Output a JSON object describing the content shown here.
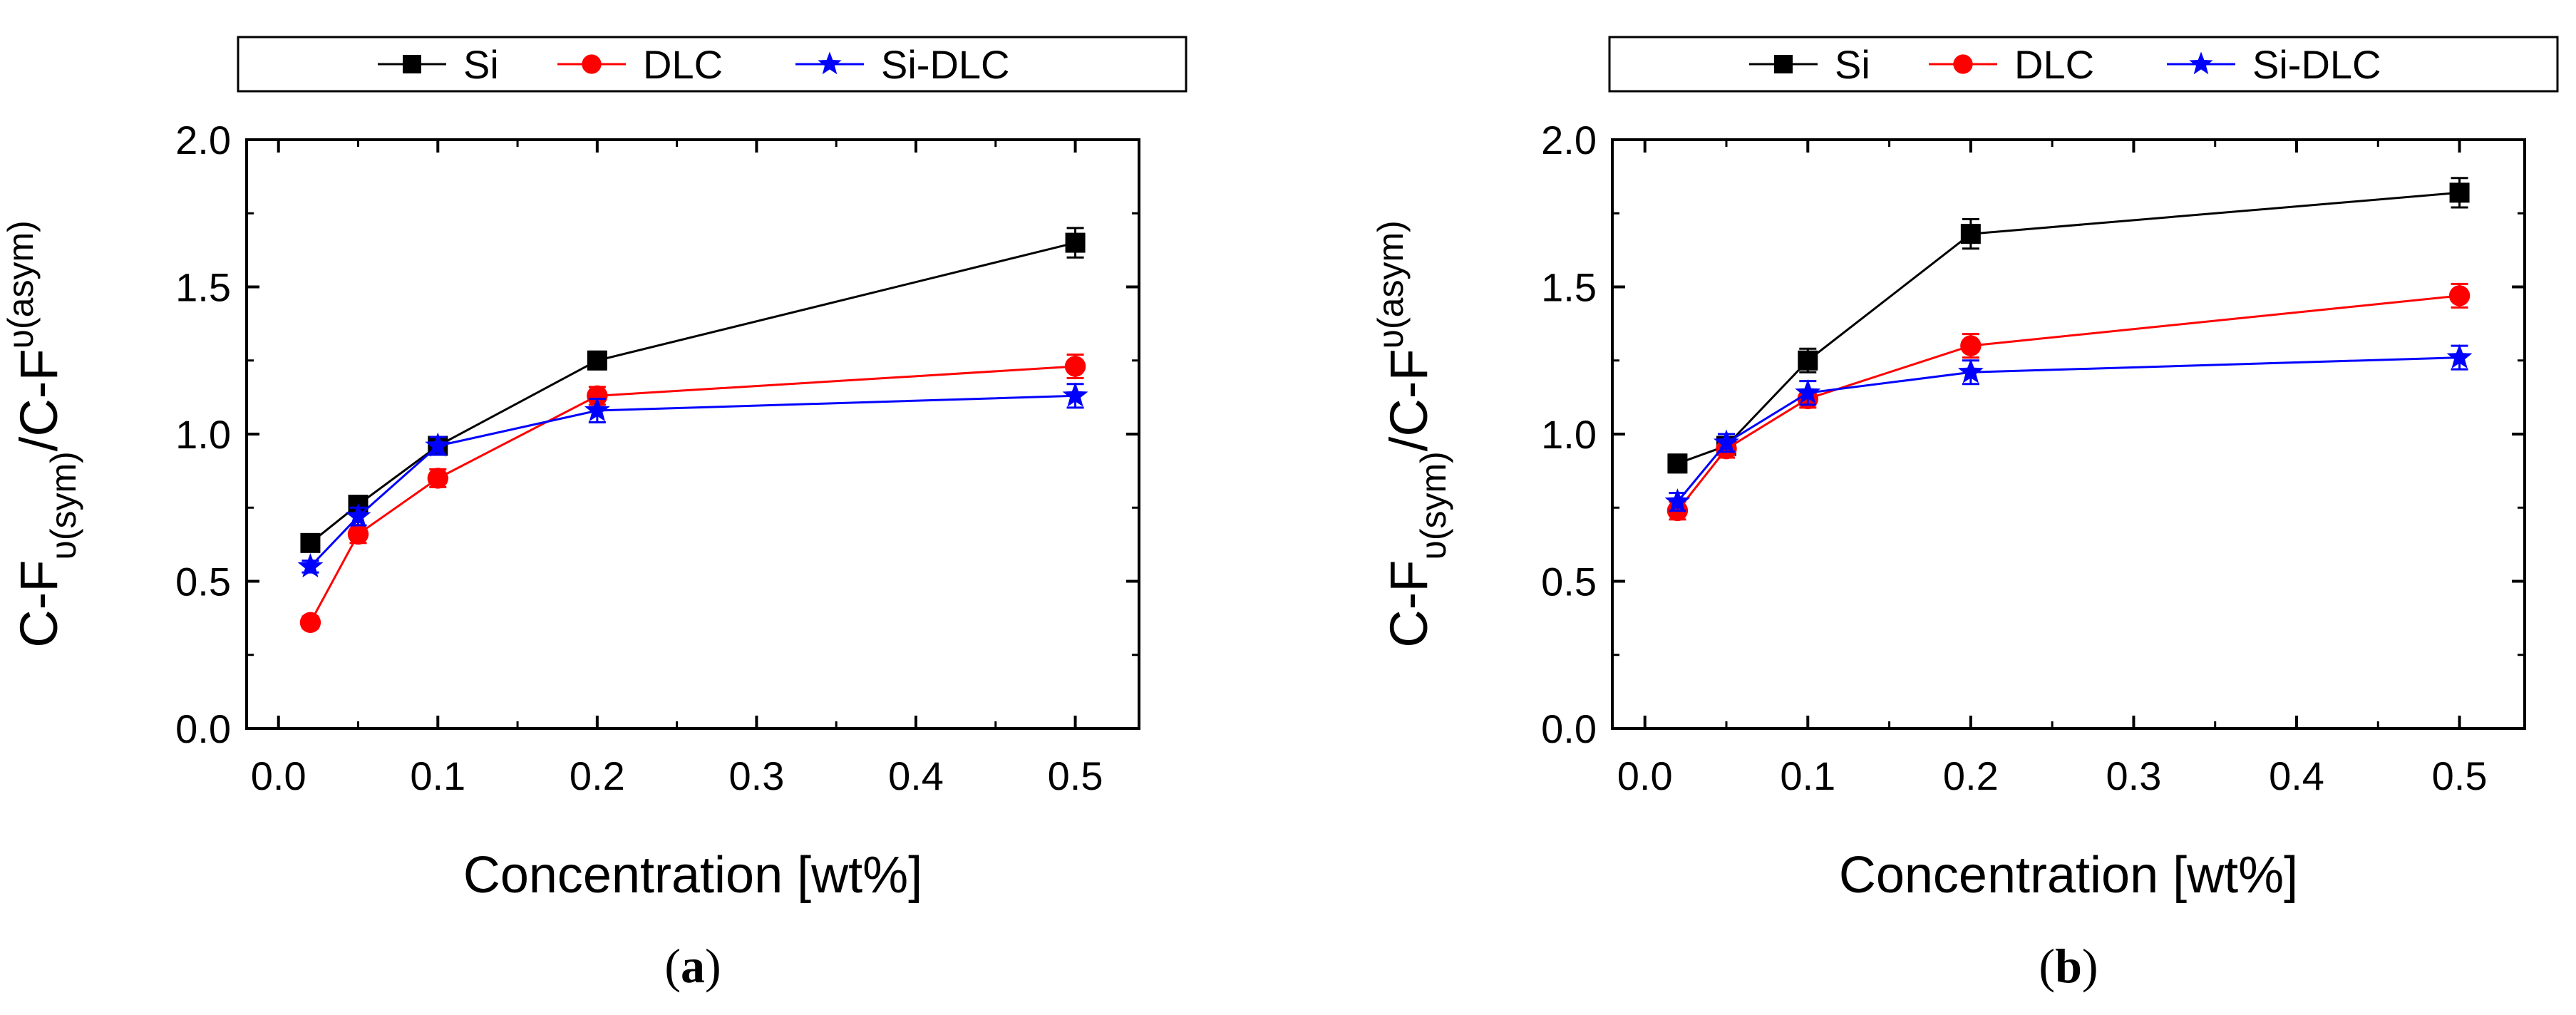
{
  "chart_data": [
    {
      "panel": "a",
      "caption_open": "(",
      "caption_letter": "a",
      "caption_close": ")",
      "type": "line",
      "xlabel": "Concentration [wt%]",
      "ylabel": {
        "main": "C-F",
        "sub1": "υ(sym)",
        "sep": "/C-F",
        "sub2": "υ(asym)"
      },
      "xlim": [
        -0.02,
        0.54
      ],
      "ylim": [
        0.0,
        2.0
      ],
      "xticks": [
        0.0,
        0.1,
        0.2,
        0.3,
        0.4,
        0.5
      ],
      "xtick_labels": [
        "0.0",
        "0.1",
        "0.2",
        "0.3",
        "0.4",
        "0.5"
      ],
      "yticks": [
        0.0,
        0.5,
        1.0,
        1.5,
        2.0
      ],
      "ytick_labels": [
        "0.0",
        "0.5",
        "1.0",
        "1.5",
        "2.0"
      ],
      "legend_position": "top",
      "series": [
        {
          "name": "Si",
          "color": "#000000",
          "marker": "square",
          "x": [
            0.02,
            0.05,
            0.1,
            0.2,
            0.5
          ],
          "y": [
            0.63,
            0.76,
            0.96,
            1.25,
            1.65
          ],
          "err": [
            0.02,
            0.02,
            0.02,
            0.03,
            0.05
          ]
        },
        {
          "name": "DLC",
          "color": "#ff0000",
          "marker": "circle",
          "x": [
            0.02,
            0.05,
            0.1,
            0.2,
            0.5
          ],
          "y": [
            0.36,
            0.66,
            0.85,
            1.13,
            1.23
          ],
          "err": [
            0.02,
            0.03,
            0.03,
            0.03,
            0.04
          ]
        },
        {
          "name": "Si-DLC",
          "color": "#0000ff",
          "marker": "star",
          "x": [
            0.02,
            0.05,
            0.1,
            0.2,
            0.5
          ],
          "y": [
            0.55,
            0.72,
            0.96,
            1.08,
            1.13
          ],
          "err": [
            0.02,
            0.03,
            0.03,
            0.04,
            0.04
          ]
        }
      ]
    },
    {
      "panel": "b",
      "caption_open": "(",
      "caption_letter": "b",
      "caption_close": ")",
      "type": "line",
      "xlabel": "Concentration [wt%]",
      "ylabel": {
        "main": "C-F",
        "sub1": "υ(sym)",
        "sep": "/C-F",
        "sub2": "υ(asym)"
      },
      "xlim": [
        -0.02,
        0.54
      ],
      "ylim": [
        0.0,
        2.0
      ],
      "xticks": [
        0.0,
        0.1,
        0.2,
        0.3,
        0.4,
        0.5
      ],
      "xtick_labels": [
        "0.0",
        "0.1",
        "0.2",
        "0.3",
        "0.4",
        "0.5"
      ],
      "yticks": [
        0.0,
        0.5,
        1.0,
        1.5,
        2.0
      ],
      "ytick_labels": [
        "0.0",
        "0.5",
        "1.0",
        "1.5",
        "2.0"
      ],
      "legend_position": "top",
      "series": [
        {
          "name": "Si",
          "color": "#000000",
          "marker": "square",
          "x": [
            0.02,
            0.05,
            0.1,
            0.2,
            0.5
          ],
          "y": [
            0.9,
            0.96,
            1.25,
            1.68,
            1.82
          ],
          "err": [
            0.03,
            0.03,
            0.04,
            0.05,
            0.05
          ]
        },
        {
          "name": "DLC",
          "color": "#ff0000",
          "marker": "circle",
          "x": [
            0.02,
            0.05,
            0.1,
            0.2,
            0.5
          ],
          "y": [
            0.74,
            0.95,
            1.12,
            1.3,
            1.47
          ],
          "err": [
            0.03,
            0.03,
            0.03,
            0.04,
            0.04
          ]
        },
        {
          "name": "Si-DLC",
          "color": "#0000ff",
          "marker": "star",
          "x": [
            0.02,
            0.05,
            0.1,
            0.2,
            0.5
          ],
          "y": [
            0.77,
            0.97,
            1.14,
            1.21,
            1.26
          ],
          "err": [
            0.03,
            0.03,
            0.04,
            0.04,
            0.04
          ]
        }
      ]
    }
  ]
}
